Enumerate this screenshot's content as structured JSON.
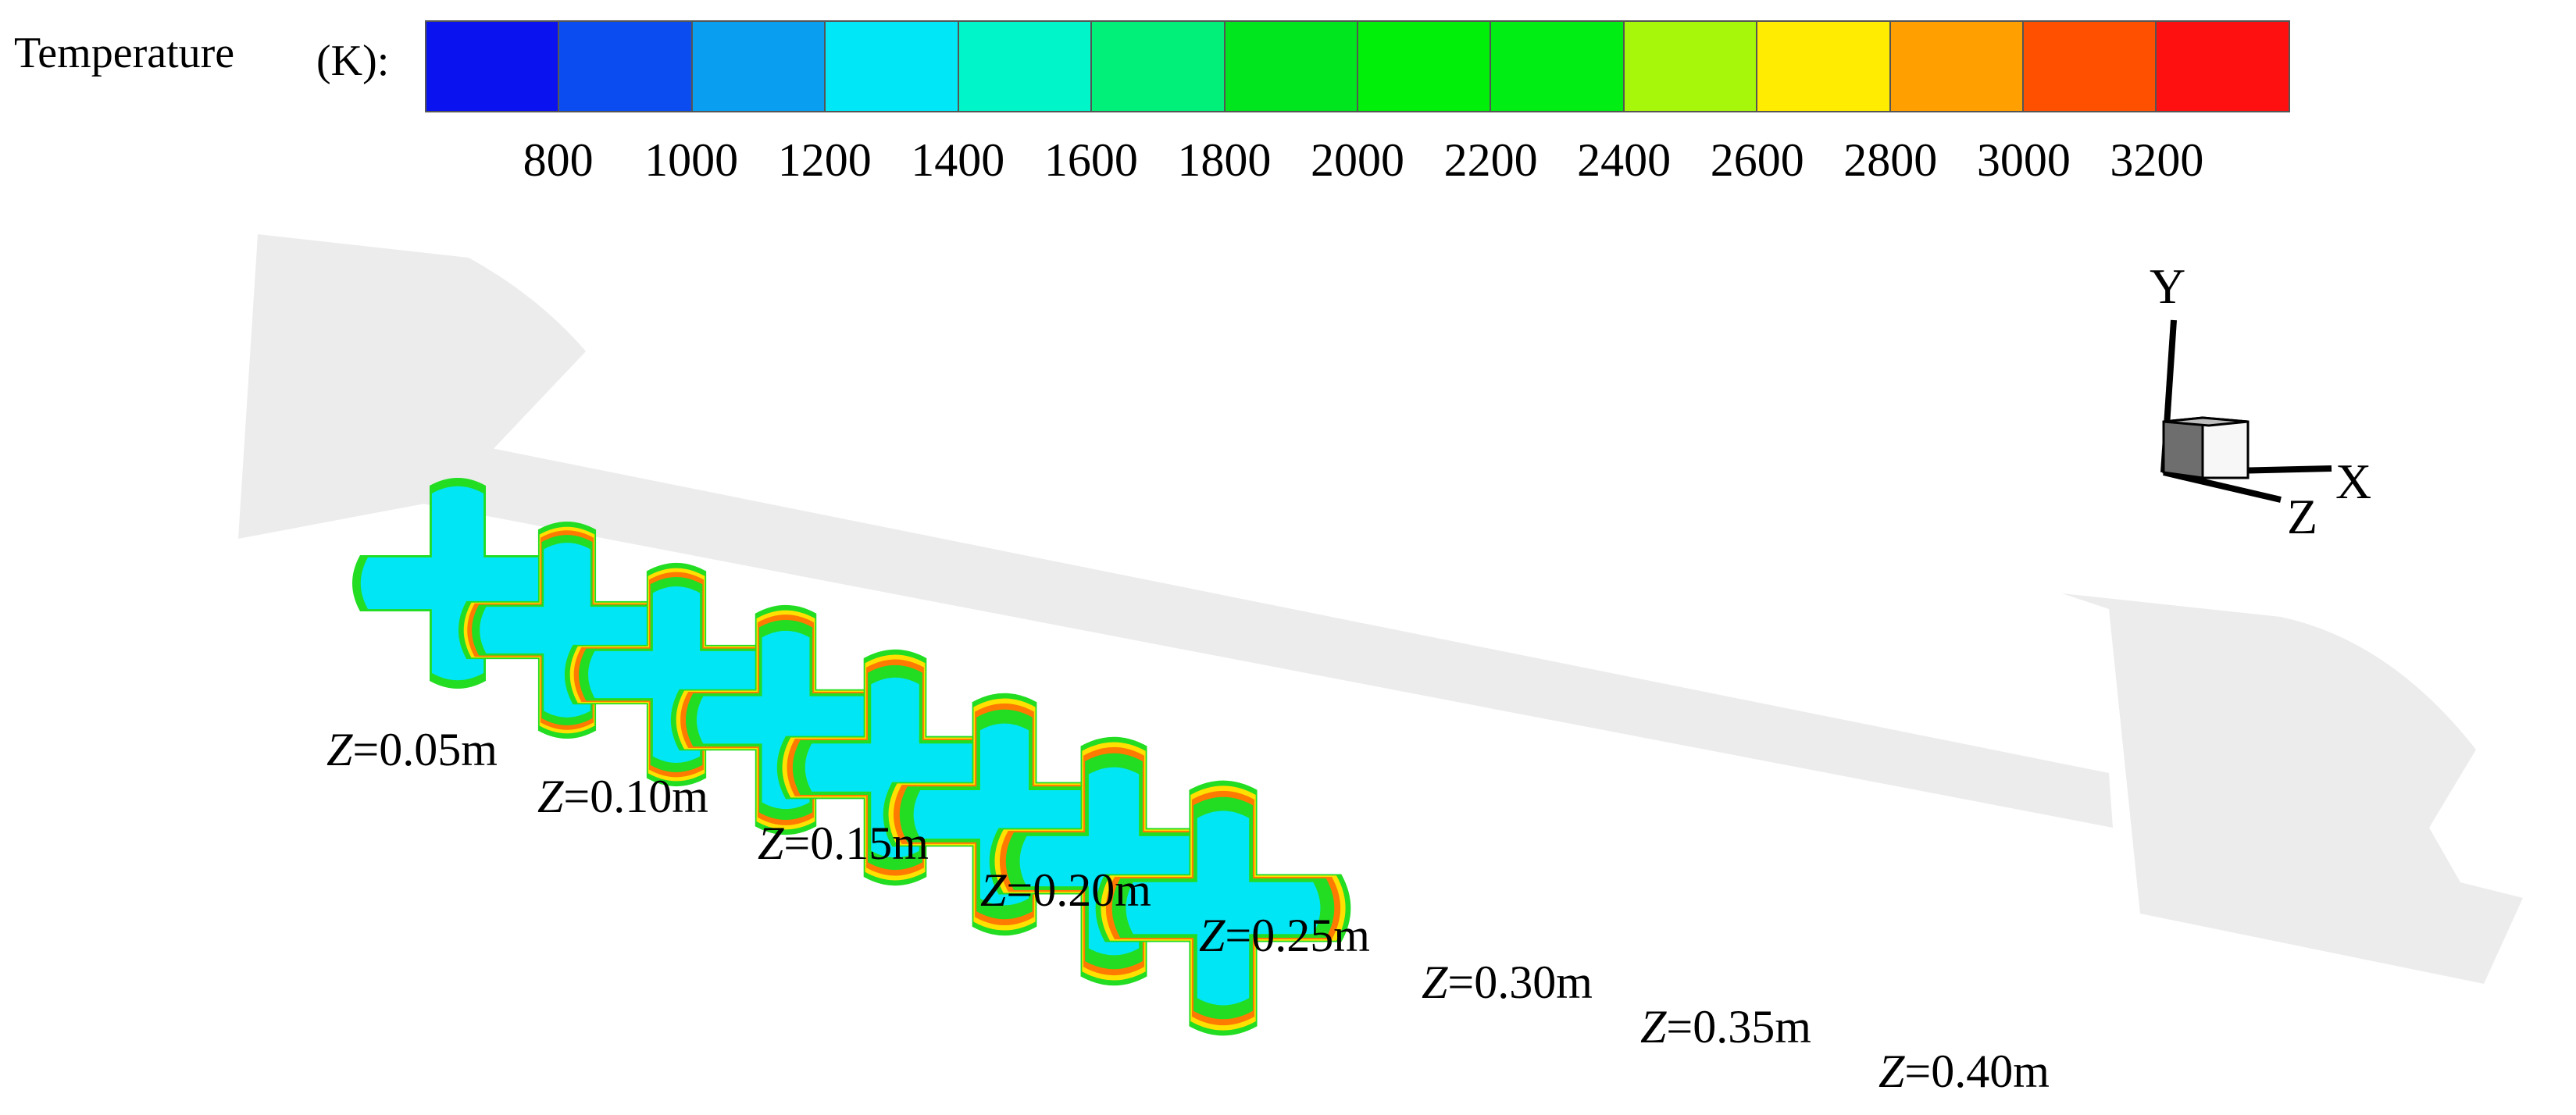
{
  "legend": {
    "title": "Temperature",
    "unit": "(K):",
    "colors": [
      "#0a12f0",
      "#0a4cf0",
      "#0a9ef0",
      "#00e8f8",
      "#00f5c8",
      "#00f07a",
      "#00e61e",
      "#00f00a",
      "#00ee14",
      "#a6f70a",
      "#ffec00",
      "#ffa000",
      "#ff5000",
      "#ff1010"
    ],
    "ticks": [
      "800",
      "1000",
      "1200",
      "1400",
      "1600",
      "1800",
      "2000",
      "2200",
      "2400",
      "2600",
      "2800",
      "3000",
      "3200"
    ]
  },
  "sections": [
    {
      "var": "Z",
      "value": "=0.05m"
    },
    {
      "var": "Z",
      "value": "=0.10m"
    },
    {
      "var": "Z",
      "value": "=0.15m"
    },
    {
      "var": "Z",
      "value": "=0.20m"
    },
    {
      "var": "Z",
      "value": "=0.25m"
    },
    {
      "var": "Z",
      "value": "=0.30m"
    },
    {
      "var": "Z",
      "value": "=0.35m"
    },
    {
      "var": "Z",
      "value": "=0.40m"
    }
  ],
  "axes": {
    "y": "Y",
    "x": "X",
    "z": "Z"
  },
  "colors": {
    "core": "#00e6f5",
    "band_outer": "#22dd22",
    "band_mid": "#ffe000",
    "band_inner": "#ff7a00",
    "shadow": "#ececec"
  }
}
